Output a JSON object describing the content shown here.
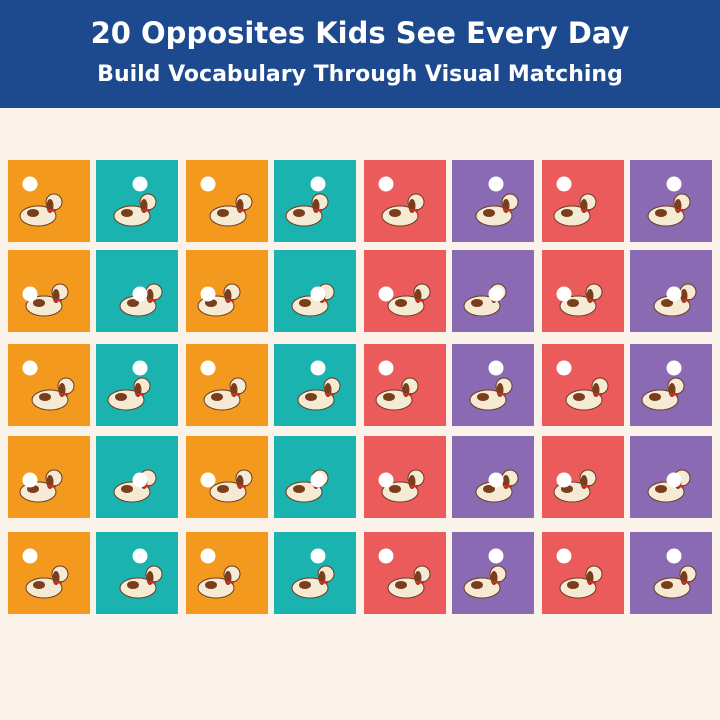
{
  "header": {
    "title": "20 Opposites Kids See Every Day",
    "subtitle": "Build Vocabulary Through Visual Matching"
  }
}
